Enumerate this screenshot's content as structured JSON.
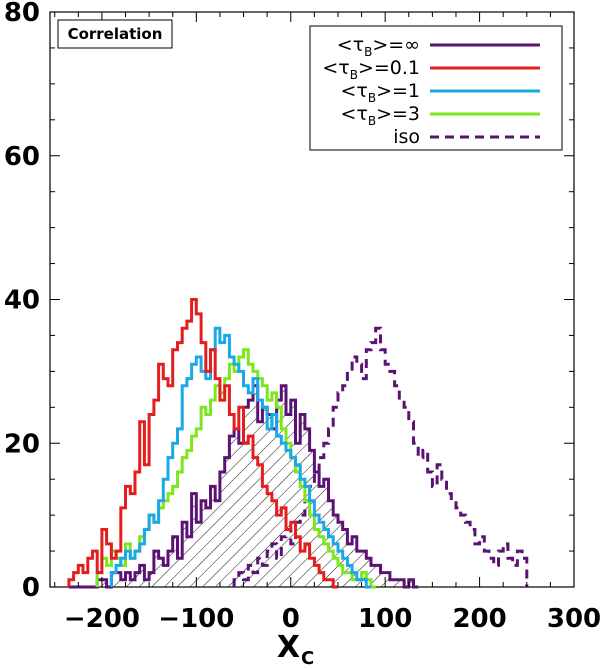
{
  "chart_data": {
    "type": "histogram",
    "annotation": "Correlation",
    "xlabel_main": "X",
    "xlabel_sub": "C",
    "ylabel": "",
    "xlim": [
      -255,
      300
    ],
    "ylim": [
      0,
      80
    ],
    "xticks": [
      -200,
      -100,
      0,
      100,
      200,
      300
    ],
    "xtick_labels": [
      "−200",
      "−100",
      "0",
      "100",
      "200",
      "300"
    ],
    "yticks": [
      0,
      20,
      40,
      60,
      80
    ],
    "ytick_labels": [
      "0",
      "20",
      "40",
      "60",
      "80"
    ],
    "legend_position": "top-right",
    "bin_width": 5,
    "series": [
      {
        "name": "inf",
        "legend_label": "<τB>=∞",
        "legend_main": "<τ",
        "legend_sub": "B",
        "legend_tail": ">=∞",
        "color": "#5b1373",
        "style": "solid",
        "hatched": true,
        "x_start": -235,
        "values": [
          0,
          0,
          0,
          0,
          0,
          0,
          1,
          1,
          0,
          2,
          2,
          1,
          2,
          1,
          2,
          3,
          1,
          2,
          5,
          4,
          3,
          5,
          7,
          4,
          9,
          7,
          13,
          9,
          12,
          11,
          14,
          12,
          16,
          18,
          21,
          22,
          20,
          25,
          26,
          28,
          23,
          25,
          24,
          22,
          26,
          28,
          24,
          26,
          20,
          24,
          22,
          19,
          16,
          14,
          15,
          12,
          10,
          9,
          8,
          6,
          7,
          5,
          5,
          4,
          3,
          3,
          2,
          2,
          1,
          1,
          1,
          0,
          1,
          0
        ]
      },
      {
        "name": "0.1",
        "legend_label": "<τB>=0.1",
        "legend_main": "<τ",
        "legend_sub": "B",
        "legend_tail": ">=0.1",
        "color": "#e41e1e",
        "style": "solid",
        "hatched": false,
        "x_start": -235,
        "values": [
          1,
          2,
          3,
          2,
          4,
          5,
          2,
          8,
          6,
          4,
          5,
          11,
          14,
          13,
          16,
          23,
          17,
          24,
          26,
          31,
          29,
          28,
          33,
          34,
          36,
          37,
          40,
          38,
          34,
          30,
          33,
          29,
          26,
          28,
          24,
          22,
          25,
          20,
          21,
          18,
          17,
          14,
          13,
          12,
          10,
          11,
          8,
          9,
          7,
          5,
          6,
          4,
          3,
          2,
          1,
          1,
          0
        ]
      },
      {
        "name": "1",
        "legend_label": "<τB>=1",
        "legend_main": "<τ",
        "legend_sub": "B",
        "legend_tail": ">=1",
        "color": "#1aa8e6",
        "style": "solid",
        "hatched": false,
        "x_start": -190,
        "values": [
          2,
          3,
          4,
          5,
          4,
          5,
          6,
          8,
          10,
          9,
          12,
          15,
          18,
          20,
          22,
          28,
          29,
          31,
          32,
          30,
          29,
          33,
          36,
          34,
          35,
          32,
          31,
          30,
          28,
          27,
          29,
          26,
          25,
          22,
          24,
          21,
          20,
          19,
          18,
          17,
          15,
          14,
          12,
          10,
          9,
          8,
          7,
          6,
          5,
          4,
          3,
          2,
          1,
          1,
          0
        ]
      },
      {
        "name": "3",
        "legend_label": "<τB>=3",
        "legend_main": "<τ",
        "legend_sub": "B",
        "legend_tail": ">=3",
        "color": "#7ce71e",
        "style": "solid",
        "hatched": false,
        "x_start": -205,
        "values": [
          2,
          4,
          3,
          5,
          4,
          3,
          6,
          4,
          5,
          7,
          8,
          10,
          9,
          11,
          12,
          13,
          14,
          16,
          18,
          19,
          21,
          22,
          25,
          24,
          26,
          28,
          27,
          29,
          31,
          30,
          32,
          33,
          31,
          30,
          29,
          28,
          26,
          27,
          25,
          22,
          20,
          18,
          16,
          14,
          12,
          10,
          8,
          7,
          6,
          5,
          4,
          3,
          2,
          2,
          1,
          1,
          2,
          1,
          0
        ]
      },
      {
        "name": "iso",
        "legend_label": "iso",
        "legend_main": "iso",
        "legend_sub": "",
        "legend_tail": "",
        "color": "#5b1373",
        "style": "dashed",
        "hatched": false,
        "x_start": -60,
        "values": [
          1,
          2,
          1,
          3,
          2,
          4,
          3,
          5,
          6,
          4,
          7,
          8,
          6,
          9,
          10,
          12,
          14,
          16,
          18,
          20,
          22,
          25,
          27,
          28,
          30,
          32,
          31,
          29,
          33,
          34,
          36,
          33,
          31,
          30,
          28,
          26,
          25,
          23,
          20,
          18,
          19,
          16,
          14,
          17,
          15,
          13,
          12,
          11,
          10,
          9,
          8,
          6,
          7,
          5,
          4,
          3,
          5,
          6,
          4,
          3,
          5,
          4
        ]
      }
    ]
  }
}
